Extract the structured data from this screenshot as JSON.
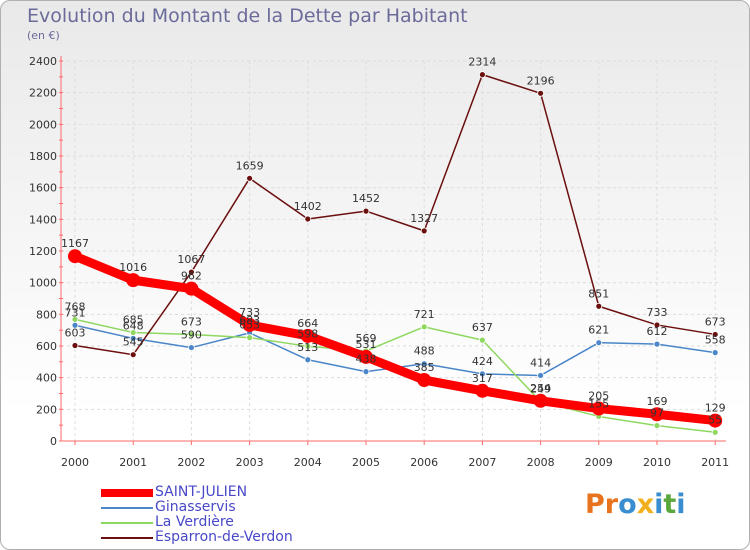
{
  "header": {
    "title": "Evolution du Montant de la Dette par Habitant",
    "subtitle": "(en €)"
  },
  "logo": {
    "text": "Proxiti",
    "colors": [
      "#e8731e",
      "#3a8ed0",
      "#f2b01e",
      "#5aa83c"
    ]
  },
  "chart_data": {
    "type": "line",
    "title": "Evolution du Montant de la Dette par Habitant",
    "subtitle": "(en €)",
    "x": [
      "2000",
      "2001",
      "2002",
      "2003",
      "2004",
      "2005",
      "2006",
      "2007",
      "2008",
      "2009",
      "2010",
      "2011"
    ],
    "ylim": [
      0,
      2400
    ],
    "yticks": [
      0,
      200,
      400,
      600,
      800,
      1000,
      1200,
      1400,
      1600,
      1800,
      2000,
      2200,
      2400
    ],
    "grid": true,
    "legend_position": "bottom-left",
    "series": [
      {
        "name": "SAINT-JULIEN",
        "color": "#ff0000",
        "values": [
          1167,
          1016,
          962,
          733,
          664,
          531,
          385,
          317,
          254,
          205,
          169,
          129
        ]
      },
      {
        "name": "Ginasservis",
        "color": "#4a86c8",
        "values": [
          731,
          648,
          590,
          683,
          513,
          438,
          488,
          424,
          414,
          621,
          612,
          558
        ]
      },
      {
        "name": "La Verdière",
        "color": "#8ed860",
        "values": [
          768,
          685,
          673,
          653,
          598,
          569,
          721,
          637,
          249,
          155,
          97,
          55
        ]
      },
      {
        "name": "Esparron-de-Verdon",
        "color": "#6b0f0f",
        "values": [
          603,
          545,
          1067,
          1659,
          1402,
          1452,
          1327,
          2314,
          2196,
          851,
          733,
          673
        ]
      }
    ]
  }
}
